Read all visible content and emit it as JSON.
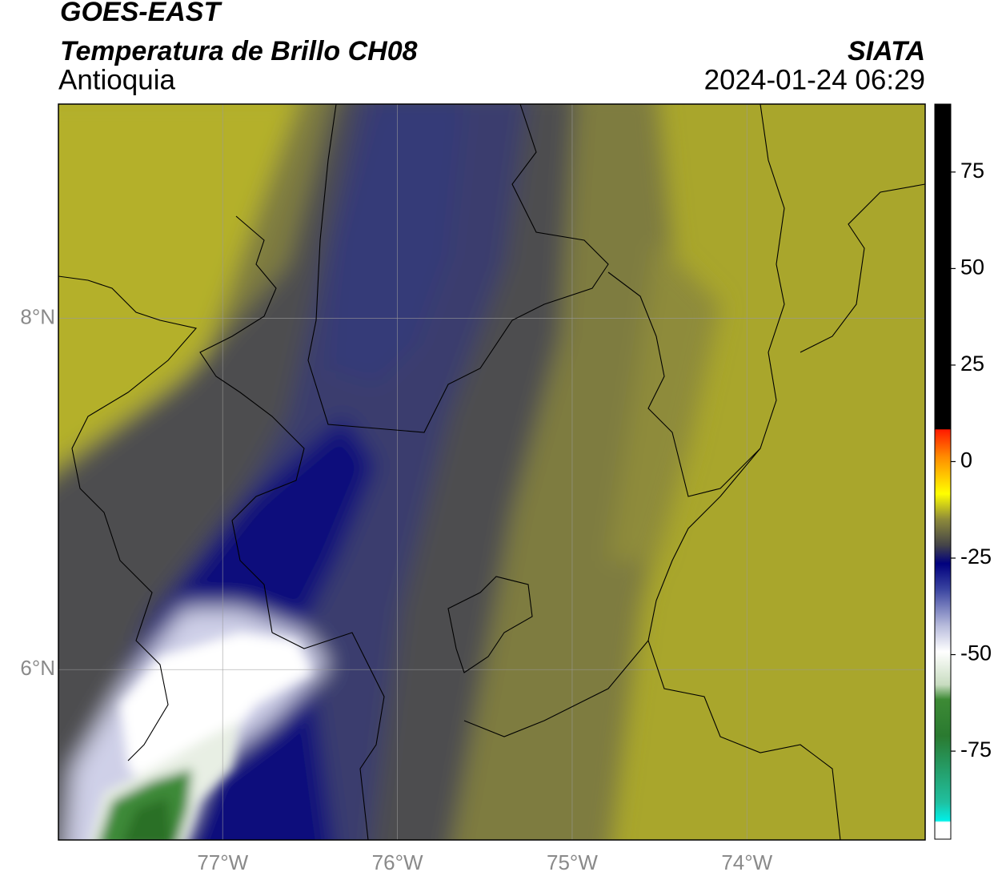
{
  "header": {
    "satellite": "GOES-EAST",
    "product": "Temperatura de Brillo CH08",
    "region": "Antioquia",
    "source": "SIATA",
    "datetime": "2024-01-24 06:29"
  },
  "map": {
    "xlim": [
      -77.94,
      -72.98
    ],
    "ylim": [
      5.03,
      9.22
    ],
    "xticks": [
      {
        "value": -77,
        "label": "77°W"
      },
      {
        "value": -76,
        "label": "76°W"
      },
      {
        "value": -75,
        "label": "75°W"
      },
      {
        "value": -74,
        "label": "74°W"
      }
    ],
    "yticks": [
      {
        "value": 8,
        "label": "8°N"
      },
      {
        "value": 6,
        "label": "6°N"
      }
    ]
  },
  "colorbar": {
    "lim": [
      -97.8,
      92.6
    ],
    "ticks": [
      75,
      50,
      25,
      0,
      -25,
      -50,
      -75
    ]
  }
}
